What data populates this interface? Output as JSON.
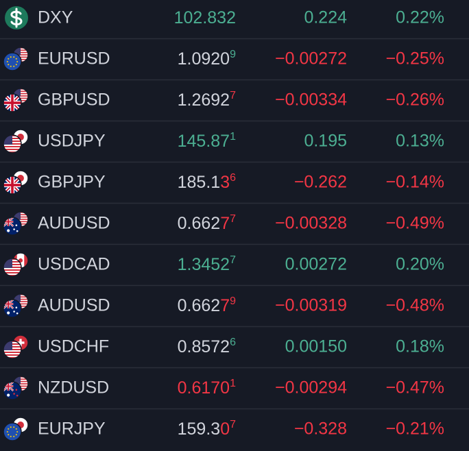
{
  "rows": [
    {
      "symbol": "DXY",
      "price": [
        {
          "text": "102.832",
          "color": "#4caf92"
        }
      ],
      "change": "0.224",
      "change_percent": "0.22%",
      "color": "#4caf92"
    },
    {
      "symbol": "EURUSD",
      "price": [
        {
          "text": "1.0920",
          "color": "#d1d4dc"
        },
        {
          "text": "9",
          "color": "#4caf92",
          "sup": true
        }
      ],
      "change": "−0.00272",
      "change_percent": "−0.25%",
      "color": "#f23645"
    },
    {
      "symbol": "GBPUSD",
      "price": [
        {
          "text": "1.2692",
          "color": "#d1d4dc"
        },
        {
          "text": "7",
          "color": "#f23645",
          "sup": true
        }
      ],
      "change": "−0.00334",
      "change_percent": "−0.26%",
      "color": "#f23645"
    },
    {
      "symbol": "USDJPY",
      "price": [
        {
          "text": "145.87",
          "color": "#4caf92"
        },
        {
          "text": "1",
          "color": "#4caf92",
          "sup": true
        }
      ],
      "change": "0.195",
      "change_percent": "0.13%",
      "color": "#4caf92"
    },
    {
      "symbol": "GBPJPY",
      "price": [
        {
          "text": "185.1",
          "color": "#d1d4dc"
        },
        {
          "text": "3",
          "color": "#f23645"
        },
        {
          "text": "6",
          "color": "#f23645",
          "sup": true
        }
      ],
      "change": "−0.262",
      "change_percent": "−0.14%",
      "color": "#f23645"
    },
    {
      "symbol": "AUDUSD",
      "price": [
        {
          "text": "0.662",
          "color": "#d1d4dc"
        },
        {
          "text": "7",
          "color": "#f23645"
        },
        {
          "text": "7",
          "color": "#f23645",
          "sup": true
        }
      ],
      "change": "−0.00328",
      "change_percent": "−0.49%",
      "color": "#f23645"
    },
    {
      "symbol": "USDCAD",
      "price": [
        {
          "text": "1.3452",
          "color": "#4caf92"
        },
        {
          "text": "7",
          "color": "#4caf92",
          "sup": true
        }
      ],
      "change": "0.00272",
      "change_percent": "0.20%",
      "color": "#4caf92"
    },
    {
      "symbol": "AUDUSD",
      "price": [
        {
          "text": "0.662",
          "color": "#d1d4dc"
        },
        {
          "text": "7",
          "color": "#f23645"
        },
        {
          "text": "9",
          "color": "#f23645",
          "sup": true
        }
      ],
      "change": "−0.00319",
      "change_percent": "−0.48%",
      "color": "#f23645"
    },
    {
      "symbol": "USDCHF",
      "price": [
        {
          "text": "0.8572",
          "color": "#d1d4dc"
        },
        {
          "text": "6",
          "color": "#4caf92",
          "sup": true
        }
      ],
      "change": "0.00150",
      "change_percent": "0.18%",
      "color": "#4caf92"
    },
    {
      "symbol": "NZDUSD",
      "price": [
        {
          "text": "0.6170",
          "color": "#f23645"
        },
        {
          "text": "1",
          "color": "#f23645",
          "sup": true
        }
      ],
      "change": "−0.00294",
      "change_percent": "−0.47%",
      "color": "#f23645"
    },
    {
      "symbol": "EURJPY",
      "price": [
        {
          "text": "159.3",
          "color": "#d1d4dc"
        },
        {
          "text": "0",
          "color": "#f23645"
        },
        {
          "text": "7",
          "color": "#f23645",
          "sup": true
        }
      ],
      "change": "−0.328",
      "change_percent": "−0.21%",
      "color": "#f23645"
    }
  ]
}
